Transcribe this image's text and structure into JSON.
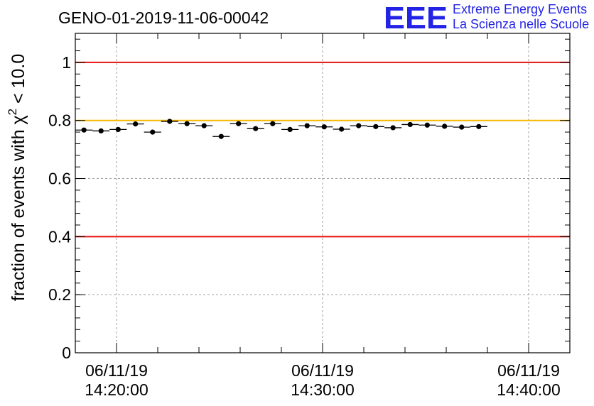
{
  "chart_data": {
    "type": "scatter",
    "title": "GENO-01-2019-11-06-00042",
    "ylabel_main": "fraction of events with χ",
    "ylabel_sup": "2",
    "ylabel_tail": " < 10.0",
    "ylim": [
      0,
      1.1
    ],
    "xlim_minutes": [
      14.0,
      38.0
    ],
    "y_ticks": [
      {
        "value": 0,
        "label": "0"
      },
      {
        "value": 0.2,
        "label": "0.2"
      },
      {
        "value": 0.4,
        "label": "0.4"
      },
      {
        "value": 0.6,
        "label": "0.6"
      },
      {
        "value": 0.8,
        "label": "0.8"
      },
      {
        "value": 1.0,
        "label": "1"
      }
    ],
    "x_ticks": [
      {
        "minute": 16,
        "date": "06/11/19",
        "time": "14:20:00"
      },
      {
        "minute": 26,
        "date": "06/11/19",
        "time": "14:30:00"
      },
      {
        "minute": 36,
        "date": "06/11/19",
        "time": "14:40:00"
      }
    ],
    "x_minor_tick_minutes": [
      14,
      18,
      20,
      22,
      24,
      28,
      30,
      32,
      34,
      38
    ],
    "reference_lines": [
      {
        "value": 1.0,
        "color": "#e8120f"
      },
      {
        "value": 0.8,
        "color": "#f5b800"
      },
      {
        "value": 0.4,
        "color": "#e8120f"
      }
    ],
    "bin_width_minutes": 0.833,
    "points": [
      {
        "x": 14.42,
        "y": 0.767
      },
      {
        "x": 15.25,
        "y": 0.764
      },
      {
        "x": 16.08,
        "y": 0.769
      },
      {
        "x": 16.92,
        "y": 0.788
      },
      {
        "x": 17.75,
        "y": 0.76
      },
      {
        "x": 18.58,
        "y": 0.797
      },
      {
        "x": 19.42,
        "y": 0.789
      },
      {
        "x": 20.25,
        "y": 0.782
      },
      {
        "x": 21.08,
        "y": 0.745
      },
      {
        "x": 21.92,
        "y": 0.789
      },
      {
        "x": 22.75,
        "y": 0.772
      },
      {
        "x": 23.58,
        "y": 0.789
      },
      {
        "x": 24.42,
        "y": 0.769
      },
      {
        "x": 25.25,
        "y": 0.782
      },
      {
        "x": 26.08,
        "y": 0.778
      },
      {
        "x": 26.92,
        "y": 0.77
      },
      {
        "x": 27.75,
        "y": 0.782
      },
      {
        "x": 28.58,
        "y": 0.779
      },
      {
        "x": 29.42,
        "y": 0.775
      },
      {
        "x": 30.25,
        "y": 0.786
      },
      {
        "x": 31.08,
        "y": 0.784
      },
      {
        "x": 31.92,
        "y": 0.78
      },
      {
        "x": 32.75,
        "y": 0.777
      },
      {
        "x": 33.58,
        "y": 0.779
      }
    ]
  },
  "logo": {
    "mark": "EEE",
    "line1": "Extreme Energy Events",
    "line2": "La Scienza nelle Scuole",
    "color": "#2323e6"
  }
}
